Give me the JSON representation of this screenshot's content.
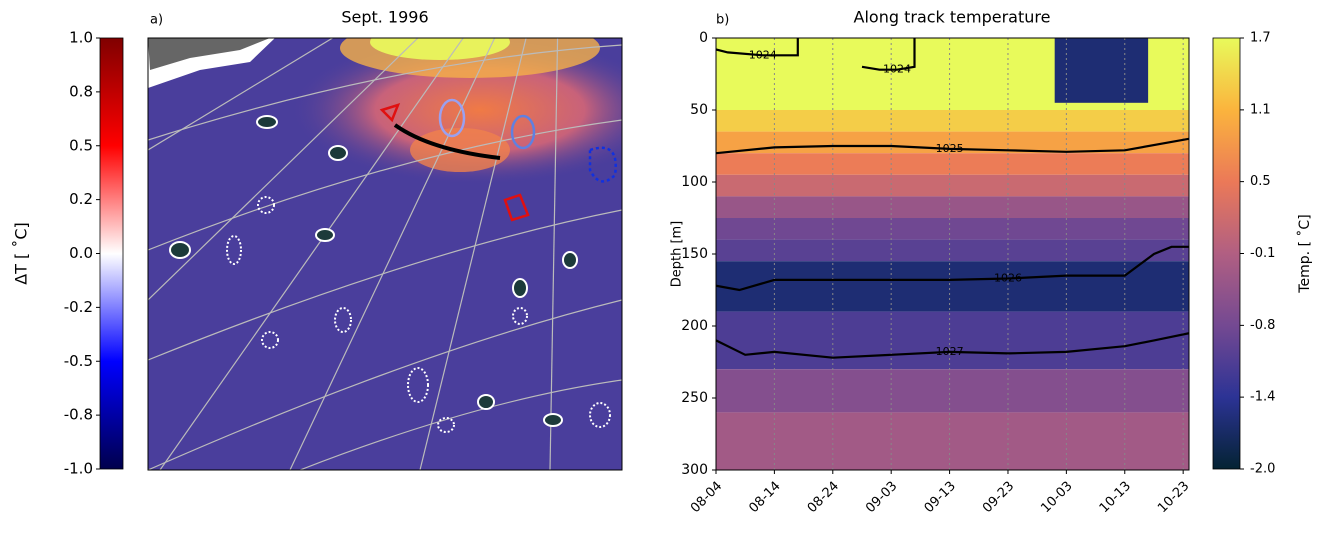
{
  "chart_data": [
    {
      "type": "map",
      "label": "a)",
      "title": "Sept. 1996",
      "colorbar": {
        "label": "ΔT [ ˚C]",
        "lim": [
          -1,
          1
        ],
        "ticks": [
          {
            "value": 1,
            "label": "1.0"
          },
          {
            "value": 0.75,
            "label": "0.8"
          },
          0.5,
          {
            "value": 0.25,
            "label": "0.2"
          },
          {
            "value": 0,
            "label": "0.0"
          },
          {
            "value": -0.25,
            "label": "-0.2"
          },
          -0.5,
          {
            "value": -0.75,
            "label": "-0.8"
          },
          {
            "value": -1,
            "label": "-1.0"
          }
        ],
        "colors": [
          "#00004c",
          "#0000ff",
          "#ffffff",
          "#ff0000",
          "#800000"
        ]
      }
    },
    {
      "type": "heatmap",
      "label": "b)",
      "title": "Along track temperature",
      "ylabel": "Depth [m]",
      "xlim": [
        "08-04",
        "10-24"
      ],
      "xticks": [
        "08-04",
        "08-14",
        "08-24",
        "09-03",
        "09-13",
        "09-23",
        "10-03",
        "10-13",
        "10-23"
      ],
      "ylim": [
        0,
        300
      ],
      "y_inverted": true,
      "yticks": [
        0,
        50,
        100,
        150,
        200,
        250,
        300
      ],
      "grid": true,
      "depth_edges": [
        0,
        50,
        65,
        80,
        95,
        110,
        125,
        140,
        155,
        190,
        230,
        260,
        300
      ],
      "values": [
        1.7,
        1.3,
        0.9,
        0.5,
        0.1,
        -0.4,
        -0.8,
        -1.0,
        -1.6,
        -1.1,
        -0.6,
        -0.3
      ],
      "patches": [
        {
          "x": [
            "10-01",
            "10-17"
          ],
          "depth": [
            0,
            45
          ],
          "value": -1.6
        }
      ],
      "contours": [
        {
          "name": "1024",
          "x": [
            "08-04",
            "08-06",
            "08-12",
            "08-18",
            "08-18"
          ],
          "depth": [
            8,
            10,
            12,
            12,
            0
          ]
        },
        {
          "name": "1024",
          "x": [
            "08-29",
            "09-01",
            "09-04",
            "09-07",
            "09-07"
          ],
          "depth": [
            20,
            22,
            22,
            20,
            0
          ]
        },
        {
          "name": "1025",
          "x": [
            "08-04",
            "08-14",
            "08-24",
            "09-03",
            "09-13",
            "09-23",
            "10-03",
            "10-13",
            "10-24"
          ],
          "depth": [
            80,
            76,
            75,
            75,
            77,
            78,
            79,
            78,
            70
          ]
        },
        {
          "name": "1026",
          "x": [
            "08-04",
            "08-08",
            "08-14",
            "08-24",
            "09-03",
            "09-13",
            "09-23",
            "10-03",
            "10-13",
            "10-18",
            "10-21",
            "10-24"
          ],
          "depth": [
            172,
            175,
            168,
            168,
            168,
            168,
            167,
            165,
            165,
            150,
            145,
            145
          ]
        },
        {
          "name": "1027",
          "x": [
            "08-04",
            "08-09",
            "08-14",
            "08-24",
            "09-03",
            "09-13",
            "09-23",
            "10-03",
            "10-13",
            "10-18",
            "10-24"
          ],
          "depth": [
            210,
            220,
            218,
            222,
            220,
            218,
            219,
            218,
            214,
            210,
            205
          ]
        }
      ],
      "colorbar": {
        "label": "Temp. [ ˚C]",
        "lim": [
          -2,
          1.7
        ],
        "ticks": [
          1.7,
          {
            "value": 1.083,
            "label": "1.1"
          },
          {
            "value": 0.467,
            "label": "0.5"
          },
          {
            "value": -0.15,
            "label": "-0.1"
          },
          {
            "value": -0.767,
            "label": "-0.8"
          },
          {
            "value": -1.383,
            "label": "-1.4"
          },
          {
            "value": -2,
            "label": "-2.0"
          }
        ],
        "colors": [
          "#042333",
          "#2c3395",
          "#744992",
          "#b15f82",
          "#eb7958",
          "#fbb43d",
          "#e8fa5b"
        ]
      }
    }
  ]
}
